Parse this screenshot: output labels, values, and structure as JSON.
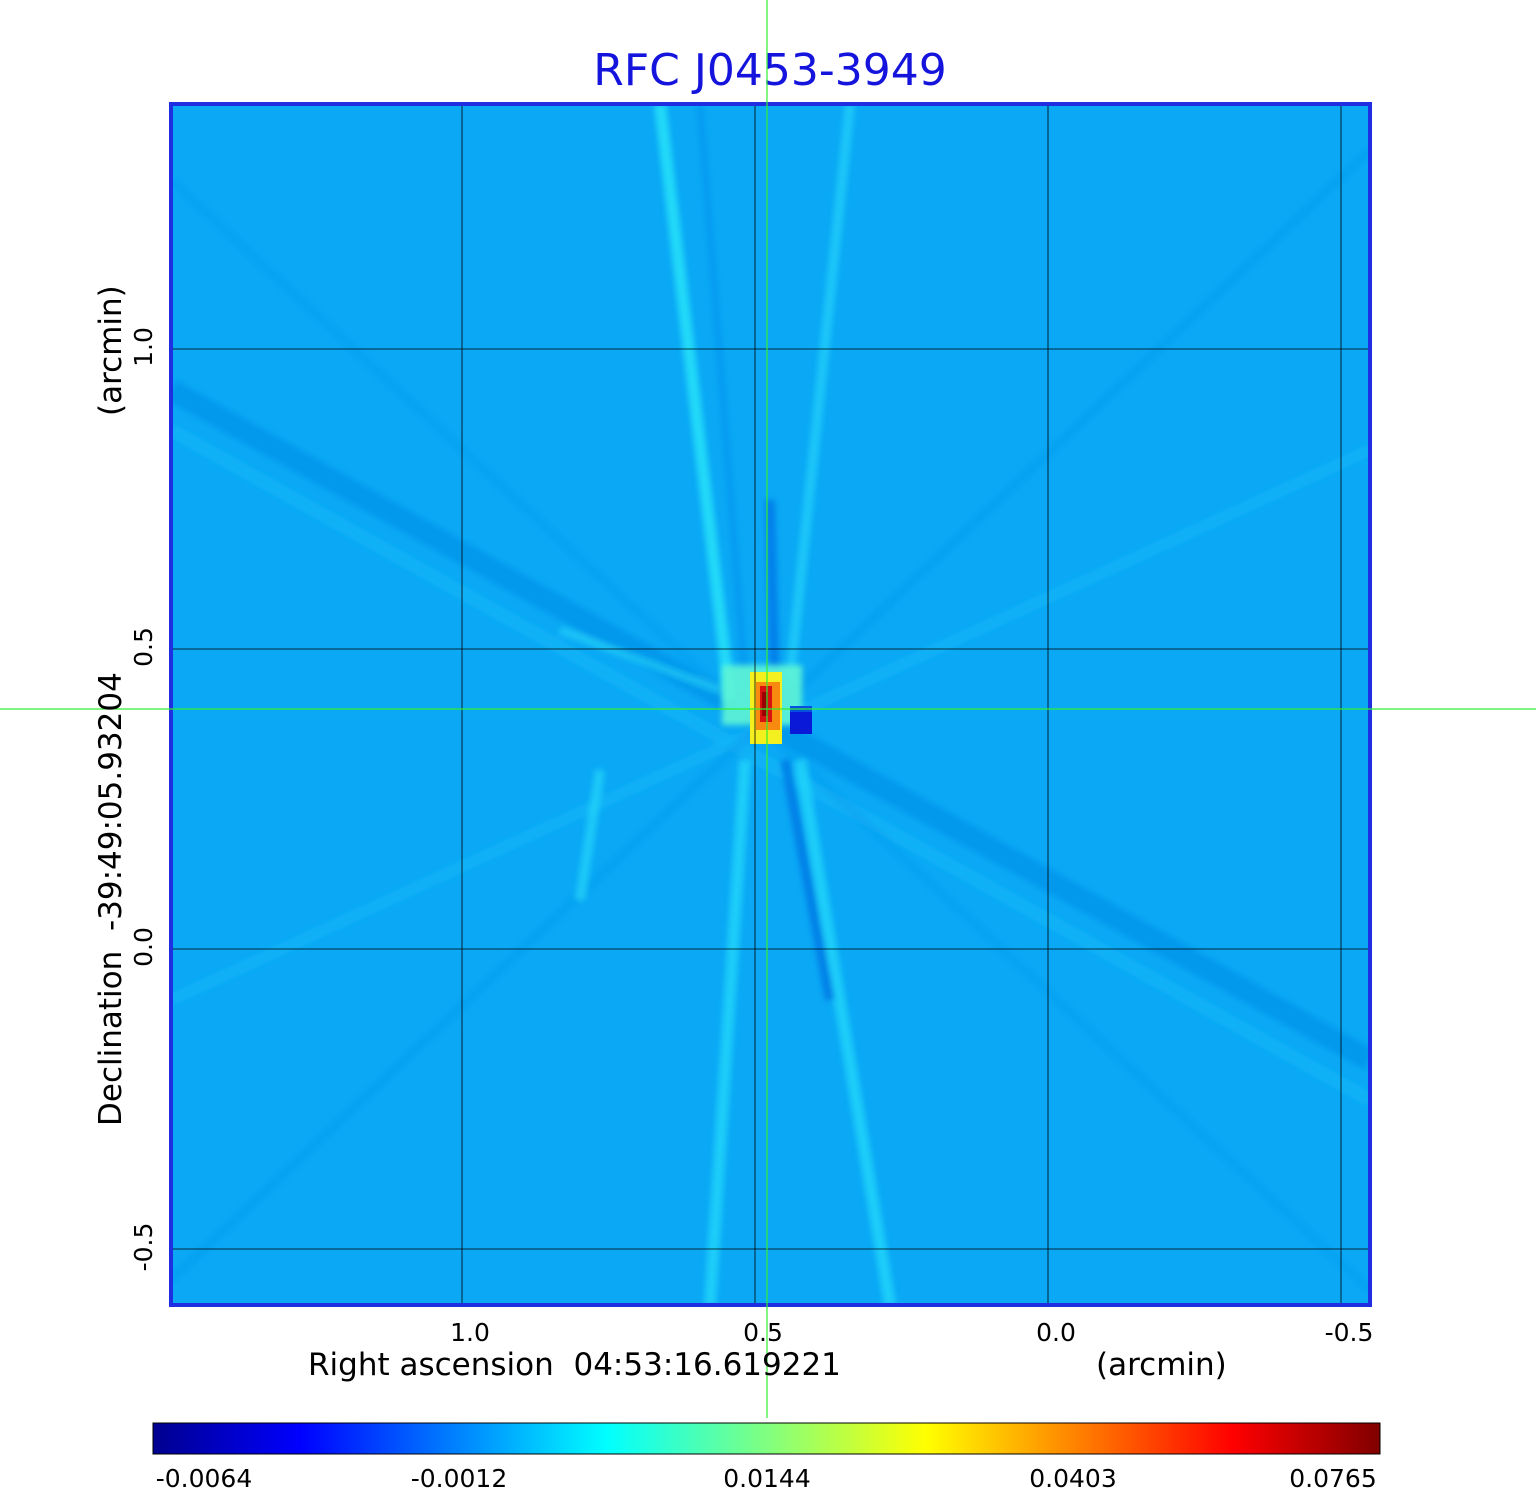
{
  "chart_data": {
    "type": "heatmap",
    "title": "RFC J0453-3949",
    "xlabel": "Right ascension  04:53:16.619221",
    "xunit": "(arcmin)",
    "ylabel": "Declination  -39:49:05.93204",
    "yunit": "(arcmin)",
    "x_ticks": [
      1.0,
      0.5,
      0.0,
      -0.5
    ],
    "x_tick_labels": [
      "1.0",
      "0.5",
      "0.0",
      "-0.5"
    ],
    "y_ticks": [
      1.0,
      0.5,
      0.0,
      -0.5
    ],
    "y_tick_labels": [
      "1.0",
      "0.5",
      "0.0",
      "-0.5"
    ],
    "xlim": [
      1.25,
      -0.55
    ],
    "ylim": [
      -0.6,
      1.4
    ],
    "grid": true,
    "crosshair": {
      "x": 0.48,
      "y": 0.4
    },
    "colorbar": {
      "ticks": [
        -0.0064,
        -0.0012,
        0.0144,
        0.0403,
        0.0765
      ],
      "tick_labels": [
        "-0.0064",
        "-0.0012",
        "0.0144",
        "0.0403",
        "0.0765"
      ],
      "colormap": "jet"
    },
    "features": {
      "peak": {
        "x": 0.49,
        "y": 0.4,
        "value": 0.0765
      },
      "negative_lobe": {
        "x": 0.43,
        "y": 0.37,
        "value": -0.0064
      },
      "background_level": -0.0012
    }
  },
  "colors": {
    "title": "#1414dd",
    "frame": "#1f2ee0",
    "crosshair": "#33ee33",
    "grid": "#000000",
    "background_field": "#0aa8f5"
  }
}
